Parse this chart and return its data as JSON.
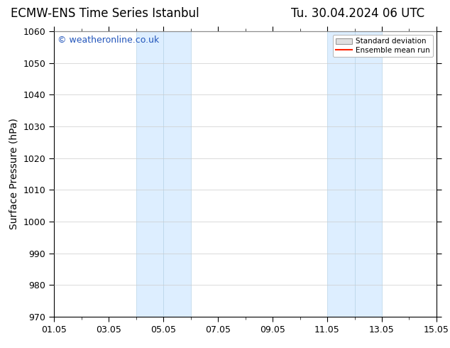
{
  "title_left": "ECMW-ENS Time Series Istanbul",
  "title_right": "Tu. 30.04.2024 06 UTC",
  "ylabel": "Surface Pressure (hPa)",
  "ylim": [
    970,
    1060
  ],
  "yticks": [
    970,
    980,
    990,
    1000,
    1010,
    1020,
    1030,
    1040,
    1050,
    1060
  ],
  "xtick_labels": [
    "01.05",
    "03.05",
    "05.05",
    "07.05",
    "09.05",
    "11.05",
    "13.05",
    "15.05"
  ],
  "xtick_positions": [
    0,
    2,
    4,
    6,
    8,
    10,
    12,
    14
  ],
  "xlim": [
    0,
    14
  ],
  "shaded_bands": [
    {
      "x_start": 3.0,
      "x_end": 4.0
    },
    {
      "x_start": 4.0,
      "x_end": 5.0
    },
    {
      "x_start": 10.0,
      "x_end": 11.0
    },
    {
      "x_start": 11.0,
      "x_end": 12.0
    }
  ],
  "band_color": "#ddeeff",
  "band_edge_color": "#b8d4e8",
  "watermark_text": "© weatheronline.co.uk",
  "watermark_color": "#2255bb",
  "legend_std_dev_facecolor": "#e0e0e0",
  "legend_std_dev_edgecolor": "#999999",
  "legend_mean_run_color": "#ff2200",
  "background_color": "#ffffff",
  "title_fontsize": 12,
  "label_fontsize": 10,
  "tick_fontsize": 9,
  "watermark_fontsize": 9
}
